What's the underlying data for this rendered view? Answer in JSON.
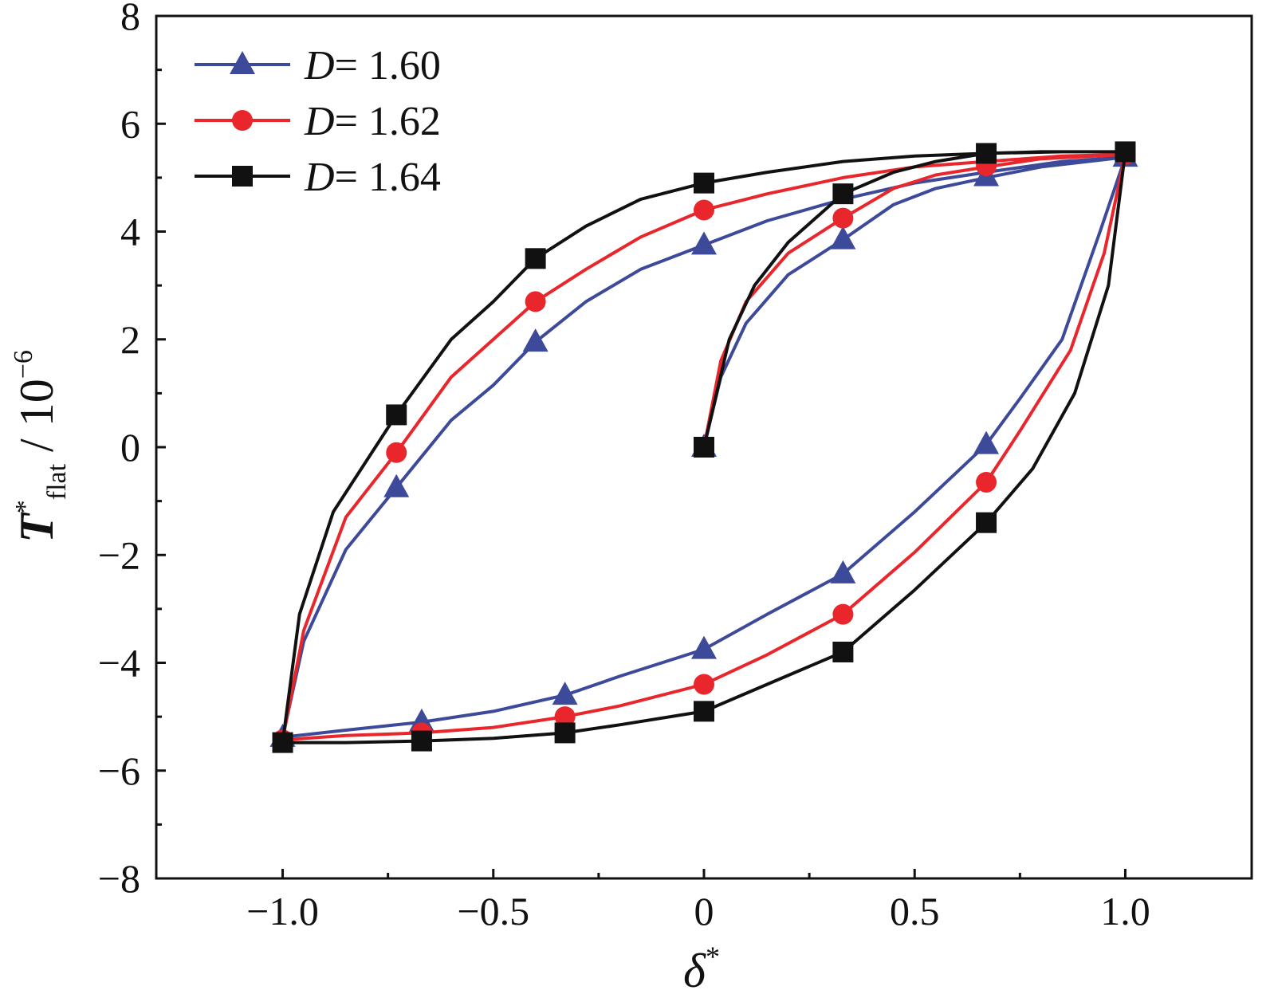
{
  "chart_data": {
    "type": "line",
    "xlabel": {
      "main": "δ",
      "sup": "*"
    },
    "ylabel": {
      "main": "T",
      "sup": "*",
      "sub": "flat",
      "unit": " / 10",
      "unit_sup": "−6"
    },
    "xlim": [
      -1.3,
      1.3
    ],
    "ylim": [
      -8,
      8
    ],
    "xticks": [
      -1.0,
      -0.5,
      0,
      0.5,
      1.0
    ],
    "xtick_labels": [
      "−1.0",
      "−0.5",
      "0",
      "0.5",
      "1.0"
    ],
    "yticks": [
      -8,
      -6,
      -4,
      -2,
      0,
      2,
      4,
      6,
      8
    ],
    "ytick_labels": [
      "−8",
      "−6",
      "−4",
      "−2",
      "0",
      "2",
      "4",
      "6",
      "8"
    ],
    "grid": false,
    "legend_position": "top-left",
    "series": [
      {
        "name": "1.60",
        "legend_var": "D",
        "legend_eq": "= ",
        "color": "#3d4a9a",
        "marker": "triangle",
        "curve": [
          [
            0,
            0
          ],
          [
            0.04,
            1.3
          ],
          [
            0.1,
            2.3
          ],
          [
            0.2,
            3.2
          ],
          [
            0.33,
            3.85
          ],
          [
            0.45,
            4.5
          ],
          [
            0.55,
            4.8
          ],
          [
            0.67,
            5.0
          ],
          [
            0.8,
            5.2
          ],
          [
            1.0,
            5.38
          ],
          [
            0.94,
            4.0
          ],
          [
            0.85,
            2.0
          ],
          [
            0.75,
            0.9
          ],
          [
            0.67,
            0.05
          ],
          [
            0.5,
            -1.2
          ],
          [
            0.33,
            -2.35
          ],
          [
            0.15,
            -3.1
          ],
          [
            0,
            -3.75
          ],
          [
            -0.2,
            -4.25
          ],
          [
            -0.33,
            -4.6
          ],
          [
            -0.5,
            -4.9
          ],
          [
            -0.67,
            -5.1
          ],
          [
            -0.85,
            -5.25
          ],
          [
            -1.0,
            -5.38
          ],
          [
            -0.95,
            -3.6
          ],
          [
            -0.85,
            -1.9
          ],
          [
            -0.73,
            -0.75
          ],
          [
            -0.6,
            0.5
          ],
          [
            -0.5,
            1.15
          ],
          [
            -0.4,
            1.95
          ],
          [
            -0.28,
            2.7
          ],
          [
            -0.15,
            3.3
          ],
          [
            0,
            3.75
          ],
          [
            0.15,
            4.2
          ],
          [
            0.33,
            4.6
          ],
          [
            0.5,
            4.9
          ],
          [
            0.67,
            5.1
          ],
          [
            0.85,
            5.3
          ],
          [
            1.0,
            5.38
          ]
        ],
        "markers": [
          [
            0,
            0
          ],
          [
            0.33,
            3.85
          ],
          [
            0.67,
            5.02
          ],
          [
            1.0,
            5.38
          ],
          [
            0.67,
            0.05
          ],
          [
            0.33,
            -2.35
          ],
          [
            0,
            -3.75
          ],
          [
            -0.33,
            -4.6
          ],
          [
            -0.67,
            -5.1
          ],
          [
            -1.0,
            -5.38
          ],
          [
            -0.73,
            -0.75
          ],
          [
            -0.4,
            1.95
          ],
          [
            0,
            3.75
          ]
        ]
      },
      {
        "name": "1.62",
        "legend_var": "D",
        "legend_eq": "= ",
        "color": "#e8262b",
        "marker": "circle",
        "curve": [
          [
            0,
            0
          ],
          [
            0.04,
            1.6
          ],
          [
            0.1,
            2.7
          ],
          [
            0.2,
            3.6
          ],
          [
            0.33,
            4.25
          ],
          [
            0.45,
            4.8
          ],
          [
            0.55,
            5.05
          ],
          [
            0.67,
            5.2
          ],
          [
            0.8,
            5.35
          ],
          [
            1.0,
            5.43
          ],
          [
            0.95,
            3.6
          ],
          [
            0.87,
            1.8
          ],
          [
            0.75,
            0.3
          ],
          [
            0.67,
            -0.65
          ],
          [
            0.5,
            -1.95
          ],
          [
            0.33,
            -3.1
          ],
          [
            0.15,
            -3.85
          ],
          [
            0,
            -4.4
          ],
          [
            -0.2,
            -4.8
          ],
          [
            -0.33,
            -5.0
          ],
          [
            -0.5,
            -5.2
          ],
          [
            -0.67,
            -5.3
          ],
          [
            -0.85,
            -5.35
          ],
          [
            -1.0,
            -5.43
          ],
          [
            -0.95,
            -3.4
          ],
          [
            -0.85,
            -1.3
          ],
          [
            -0.73,
            -0.1
          ],
          [
            -0.6,
            1.3
          ],
          [
            -0.5,
            2.0
          ],
          [
            -0.4,
            2.7
          ],
          [
            -0.28,
            3.3
          ],
          [
            -0.15,
            3.9
          ],
          [
            0,
            4.4
          ],
          [
            0.15,
            4.7
          ],
          [
            0.33,
            5.0
          ],
          [
            0.5,
            5.2
          ],
          [
            0.67,
            5.3
          ],
          [
            0.85,
            5.4
          ],
          [
            1.0,
            5.43
          ]
        ],
        "markers": [
          [
            0,
            0
          ],
          [
            0.33,
            4.25
          ],
          [
            0.67,
            5.22
          ],
          [
            1.0,
            5.43
          ],
          [
            0.67,
            -0.65
          ],
          [
            0.33,
            -3.1
          ],
          [
            0,
            -4.4
          ],
          [
            -0.33,
            -5.0
          ],
          [
            -0.67,
            -5.3
          ],
          [
            -1.0,
            -5.43
          ],
          [
            -0.73,
            -0.1
          ],
          [
            -0.4,
            2.7
          ],
          [
            0,
            4.4
          ]
        ]
      },
      {
        "name": "1.64",
        "legend_var": "D",
        "legend_eq": "= ",
        "color": "#111111",
        "marker": "square",
        "curve": [
          [
            0,
            0
          ],
          [
            0.06,
            2.0
          ],
          [
            0.12,
            3.0
          ],
          [
            0.2,
            3.8
          ],
          [
            0.33,
            4.7
          ],
          [
            0.45,
            5.1
          ],
          [
            0.55,
            5.3
          ],
          [
            0.67,
            5.45
          ],
          [
            0.8,
            5.48
          ],
          [
            1.0,
            5.48
          ],
          [
            0.96,
            3.0
          ],
          [
            0.88,
            1.0
          ],
          [
            0.78,
            -0.4
          ],
          [
            0.67,
            -1.4
          ],
          [
            0.5,
            -2.65
          ],
          [
            0.33,
            -3.8
          ],
          [
            0.15,
            -4.4
          ],
          [
            0,
            -4.9
          ],
          [
            -0.2,
            -5.15
          ],
          [
            -0.33,
            -5.3
          ],
          [
            -0.5,
            -5.4
          ],
          [
            -0.67,
            -5.45
          ],
          [
            -0.85,
            -5.48
          ],
          [
            -1.0,
            -5.48
          ],
          [
            -0.96,
            -3.1
          ],
          [
            -0.88,
            -1.2
          ],
          [
            -0.73,
            0.6
          ],
          [
            -0.6,
            2.0
          ],
          [
            -0.5,
            2.7
          ],
          [
            -0.4,
            3.5
          ],
          [
            -0.28,
            4.1
          ],
          [
            -0.15,
            4.6
          ],
          [
            0,
            4.9
          ],
          [
            0.15,
            5.1
          ],
          [
            0.33,
            5.3
          ],
          [
            0.5,
            5.4
          ],
          [
            0.67,
            5.45
          ],
          [
            0.85,
            5.48
          ],
          [
            1.0,
            5.48
          ]
        ],
        "markers": [
          [
            0,
            0
          ],
          [
            0.33,
            4.7
          ],
          [
            0.67,
            5.45
          ],
          [
            1.0,
            5.48
          ],
          [
            0.67,
            -1.4
          ],
          [
            0.33,
            -3.8
          ],
          [
            0,
            -4.9
          ],
          [
            -0.33,
            -5.3
          ],
          [
            -0.67,
            -5.45
          ],
          [
            -1.0,
            -5.48
          ],
          [
            -0.73,
            0.6
          ],
          [
            -0.4,
            3.5
          ],
          [
            0,
            4.9
          ]
        ]
      }
    ]
  }
}
